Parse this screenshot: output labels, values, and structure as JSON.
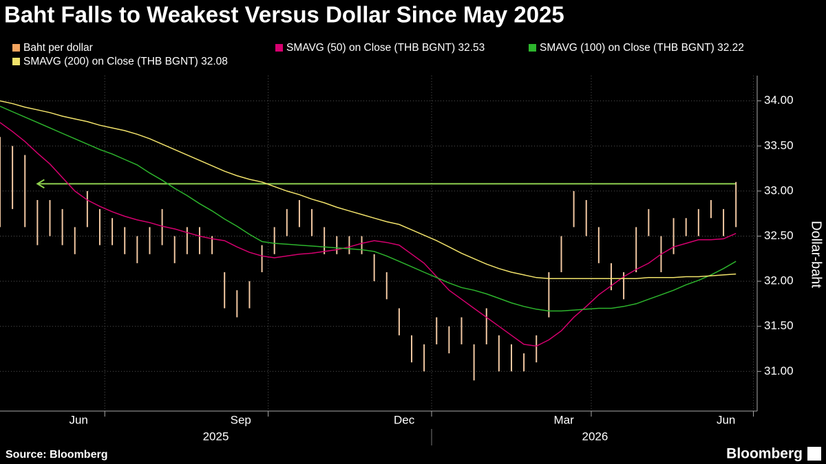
{
  "chart_data": {
    "type": "range-bar-line",
    "title": "Baht Falls to Weakest Versus Dollar Since May 2025",
    "y_label": "Dollar-baht",
    "source": "Source: Bloomberg",
    "brand": "Bloomberg",
    "x": [
      0,
      1,
      2,
      3,
      4,
      5,
      6,
      7,
      8,
      9,
      10,
      11,
      12,
      13,
      14,
      15,
      16,
      17,
      18,
      19,
      20,
      21,
      22,
      23,
      24,
      25,
      26,
      27,
      28,
      29,
      30,
      31,
      32,
      33,
      34,
      35,
      36,
      37,
      38,
      39,
      40,
      41,
      42,
      43,
      44,
      45,
      46,
      47,
      48,
      49,
      50,
      51,
      52,
      53,
      54,
      55,
      56,
      57,
      58,
      59
    ],
    "xlim": [
      0,
      60.7
    ],
    "xticks": [
      {
        "value": 6.3,
        "label": "Jun"
      },
      {
        "value": 19.3,
        "label": "Sep"
      },
      {
        "value": 32.4,
        "label": "Dec"
      },
      {
        "value": 45.2,
        "label": "Mar"
      },
      {
        "value": 58.2,
        "label": "Jun"
      }
    ],
    "xgrid": [
      8.4,
      21.5,
      34.6,
      47.4,
      60.4
    ],
    "x_year_labels": [
      {
        "value": 17.3,
        "label": "2025"
      },
      {
        "value": 47.7,
        "label": "2026"
      }
    ],
    "ylim": [
      30.56,
      34.28
    ],
    "yticks": [
      {
        "value": 31,
        "label": "31.00"
      },
      {
        "value": 31.5,
        "label": "31.50"
      },
      {
        "value": 32,
        "label": "32.00"
      },
      {
        "value": 32.5,
        "label": "32.50"
      },
      {
        "value": 33,
        "label": "33.00"
      },
      {
        "value": 33.5,
        "label": "33.50"
      },
      {
        "value": 34,
        "label": "34.00"
      }
    ],
    "grid": true,
    "reference_line": 33.08,
    "reference_color": "#8fd14f",
    "series": [
      {
        "name": "Baht per dollar",
        "color": "#f5a45f",
        "bar_color": "#f3c9a3",
        "high": [
          33.6,
          33.5,
          33.4,
          32.9,
          32.9,
          32.8,
          32.6,
          33.0,
          32.8,
          32.7,
          32.6,
          32.5,
          32.6,
          32.8,
          32.5,
          32.6,
          32.6,
          32.5,
          32.1,
          31.9,
          32.0,
          32.4,
          32.6,
          32.8,
          32.9,
          32.8,
          32.6,
          32.5,
          32.5,
          32.5,
          32.3,
          32.1,
          31.7,
          31.4,
          31.3,
          31.6,
          31.5,
          31.6,
          31.3,
          31.7,
          31.4,
          31.3,
          31.2,
          31.4,
          32.1,
          32.5,
          33.0,
          32.9,
          32.6,
          32.2,
          32.1,
          32.6,
          32.8,
          32.5,
          32.7,
          32.7,
          32.8,
          32.9,
          32.8,
          33.1
        ],
        "low": [
          32.6,
          32.8,
          32.6,
          32.4,
          32.5,
          32.4,
          32.3,
          32.6,
          32.4,
          32.4,
          32.3,
          32.2,
          32.3,
          32.4,
          32.2,
          32.3,
          32.3,
          32.3,
          31.7,
          31.6,
          31.7,
          32.1,
          32.3,
          32.5,
          32.6,
          32.5,
          32.3,
          32.3,
          32.3,
          32.3,
          32.0,
          31.8,
          31.4,
          31.1,
          31.0,
          31.3,
          31.2,
          31.3,
          30.9,
          31.3,
          31.0,
          31.0,
          31.0,
          31.1,
          31.6,
          32.1,
          32.6,
          32.5,
          32.2,
          31.9,
          31.8,
          32.1,
          32.5,
          32.1,
          32.3,
          32.5,
          32.5,
          32.7,
          32.5,
          32.6
        ]
      },
      {
        "name": "SMAVG (50)  on Close (THB BGNT) 32.53",
        "color": "#d6006f",
        "values": [
          33.76,
          33.66,
          33.55,
          33.42,
          33.3,
          33.15,
          33.0,
          32.9,
          32.83,
          32.77,
          32.72,
          32.68,
          32.65,
          32.61,
          32.58,
          32.54,
          32.5,
          32.47,
          32.45,
          32.38,
          32.32,
          32.28,
          32.26,
          32.28,
          32.3,
          32.31,
          32.33,
          32.35,
          32.38,
          32.42,
          32.45,
          32.43,
          32.4,
          32.3,
          32.2,
          32.05,
          31.9,
          31.8,
          31.7,
          31.6,
          31.5,
          31.4,
          31.3,
          31.28,
          31.35,
          31.45,
          31.6,
          31.72,
          31.85,
          31.95,
          32.05,
          32.13,
          32.2,
          32.3,
          32.38,
          32.42,
          32.46,
          32.46,
          32.47,
          32.53
        ]
      },
      {
        "name": "SMAVG (100)  on Close (THB BGNT) 32.22",
        "color": "#2db52d",
        "values": [
          33.94,
          33.88,
          33.82,
          33.76,
          33.7,
          33.64,
          33.58,
          33.52,
          33.46,
          33.41,
          33.35,
          33.29,
          33.2,
          33.12,
          33.03,
          32.95,
          32.86,
          32.78,
          32.69,
          32.61,
          32.52,
          32.44,
          32.42,
          32.41,
          32.4,
          32.39,
          32.38,
          32.37,
          32.36,
          32.35,
          32.33,
          32.28,
          32.22,
          32.16,
          32.1,
          32.04,
          31.98,
          31.93,
          31.9,
          31.86,
          31.81,
          31.76,
          31.72,
          31.69,
          31.67,
          31.67,
          31.68,
          31.69,
          31.7,
          31.7,
          31.72,
          31.75,
          31.8,
          31.85,
          31.9,
          31.96,
          32.01,
          32.07,
          32.14,
          32.22
        ]
      },
      {
        "name": "SMAVG (200)  on Close (THB BGNT) 32.08",
        "color": "#f2e36b",
        "values": [
          34.0,
          33.97,
          33.93,
          33.9,
          33.87,
          33.83,
          33.8,
          33.77,
          33.73,
          33.7,
          33.67,
          33.63,
          33.58,
          33.52,
          33.46,
          33.4,
          33.34,
          33.28,
          33.22,
          33.17,
          33.13,
          33.1,
          33.05,
          33.0,
          32.96,
          32.91,
          32.87,
          32.82,
          32.78,
          32.74,
          32.7,
          32.66,
          32.63,
          32.57,
          32.51,
          32.45,
          32.38,
          32.31,
          32.25,
          32.19,
          32.14,
          32.1,
          32.07,
          32.04,
          32.03,
          32.03,
          32.03,
          32.03,
          32.03,
          32.03,
          32.03,
          32.03,
          32.04,
          32.04,
          32.04,
          32.05,
          32.05,
          32.06,
          32.07,
          32.08
        ]
      }
    ]
  }
}
